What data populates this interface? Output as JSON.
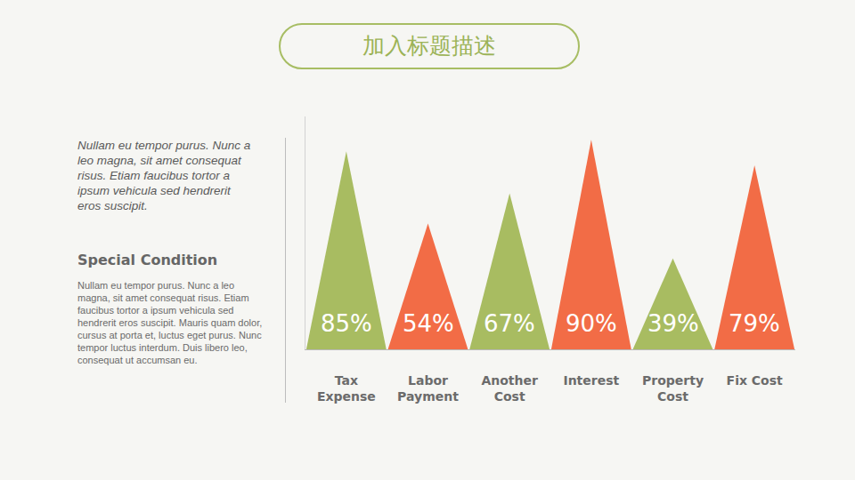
{
  "chart_data": {
    "type": "triangle",
    "title": "加入标题描述",
    "categories": [
      "Tax Expense",
      "Labor Payment",
      "Another Cost",
      "Interest",
      "Property Cost",
      "Fix Cost"
    ],
    "values": [
      85,
      54,
      67,
      90,
      39,
      79
    ],
    "value_labels": [
      "85%",
      "54%",
      "67%",
      "90%",
      "39%",
      "79%"
    ],
    "colors": [
      "#a8bc61",
      "#f26c46",
      "#a8bc61",
      "#f26c46",
      "#a8bc61",
      "#f26c46"
    ],
    "ylim": [
      0,
      100
    ],
    "grid": false,
    "data_labels": true,
    "tick_labels": "x"
  },
  "sidebar": {
    "intro": "Nullam eu tempor purus. Nunc a leo magna, sit amet consequat risus. Etiam faucibus tortor a ipsum vehicula sed hendrerit eros suscipit.",
    "heading": "Special Condition",
    "body": "Nullam eu tempor purus. Nunc a leo magna, sit amet consequat risus. Etiam faucibus tortor a ipsum vehicula sed hendrerit eros suscipit. Mauris quam dolor, cursus at porta et, luctus eget purus. Nunc tempor luctus interdum. Duis libero leo, consequat ut accumsan eu."
  }
}
